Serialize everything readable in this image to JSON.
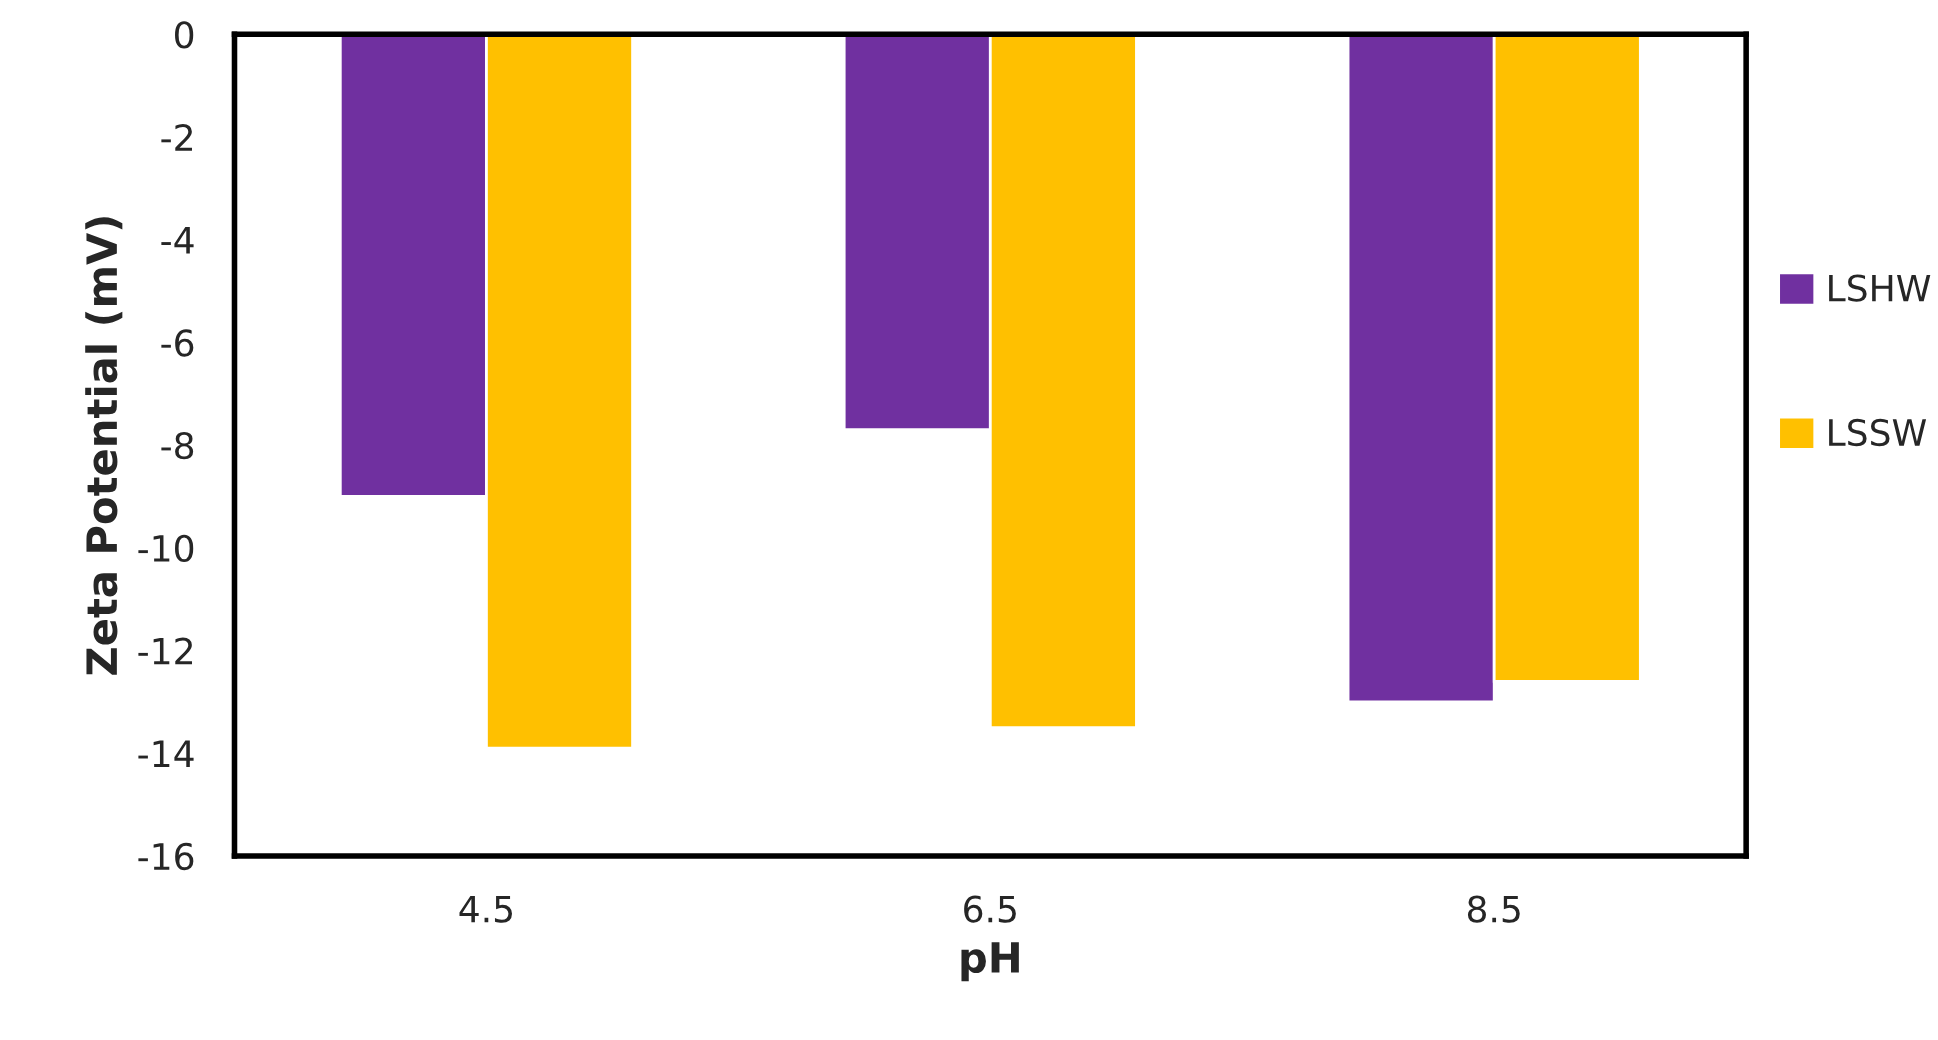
{
  "chart_data": {
    "type": "bar",
    "xlabel": "pH",
    "ylabel": "Zeta Potential (mV)",
    "categories": [
      "4.5",
      "6.5",
      "8.5"
    ],
    "series": [
      {
        "name": "LSHW",
        "color": "#7030a0",
        "values": [
          -9.0,
          -7.7,
          -13.0
        ]
      },
      {
        "name": "LSSW",
        "color": "#ffc000",
        "values": [
          -13.9,
          -13.5,
          -12.6
        ]
      }
    ],
    "ylim": [
      -16,
      0
    ],
    "yticks": [
      -16,
      -14,
      -12,
      -10,
      -8,
      -6,
      -4,
      -2,
      0
    ],
    "grid": false,
    "legend": "right"
  }
}
